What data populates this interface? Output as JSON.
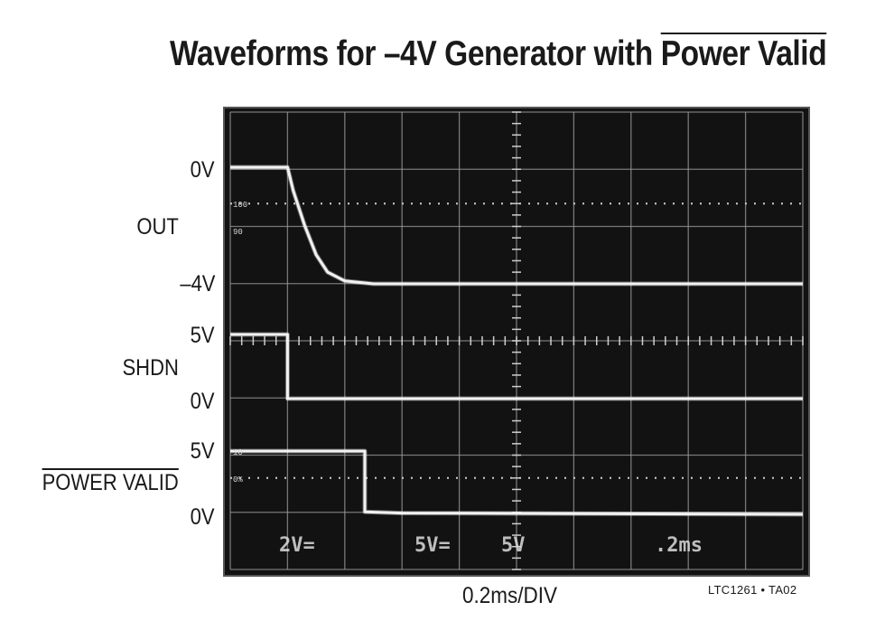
{
  "chart_data": {
    "type": "line",
    "title_main": "Waveforms for –4V Generator with ",
    "title_overline": "Power Valid",
    "x_axis_label": "0.2ms/DIV",
    "figure_id": "LTC1261 • TA02",
    "scope_readouts": {
      "ch1": "2V=",
      "ch2": "5V=",
      "ch3": "5V",
      "timebase": ".2ms"
    },
    "graticule_labels": [
      "100",
      "90",
      "10",
      "0%"
    ],
    "grid": {
      "x_divisions": 10,
      "y_divisions": 8
    },
    "x_unit": "ms",
    "xlim": [
      0,
      2.0
    ],
    "series": [
      {
        "name": "OUT",
        "label_top": "0V",
        "label_bottom": "–4V",
        "points": [
          [
            0,
            0
          ],
          [
            0.2,
            0
          ],
          [
            0.22,
            -0.8
          ],
          [
            0.26,
            -2.0
          ],
          [
            0.3,
            -3.0
          ],
          [
            0.34,
            -3.6
          ],
          [
            0.4,
            -3.9
          ],
          [
            0.5,
            -4.0
          ],
          [
            2.0,
            -4.0
          ]
        ]
      },
      {
        "name": "SHDN",
        "label_top": "5V",
        "label_bottom": "0V",
        "points": [
          [
            0,
            5
          ],
          [
            0.2,
            5
          ],
          [
            0.2,
            0
          ],
          [
            2.0,
            0
          ]
        ]
      },
      {
        "name": "POWER VALID",
        "label_top": "5V",
        "label_bottom": "0V",
        "points": [
          [
            0,
            5
          ],
          [
            0.47,
            5
          ],
          [
            0.47,
            0.2
          ],
          [
            0.6,
            0.1
          ],
          [
            2.0,
            0
          ]
        ]
      }
    ],
    "colors": {
      "screen": "#121212",
      "grid": "#9a9a9a",
      "trace": "#f2f2f2"
    }
  }
}
